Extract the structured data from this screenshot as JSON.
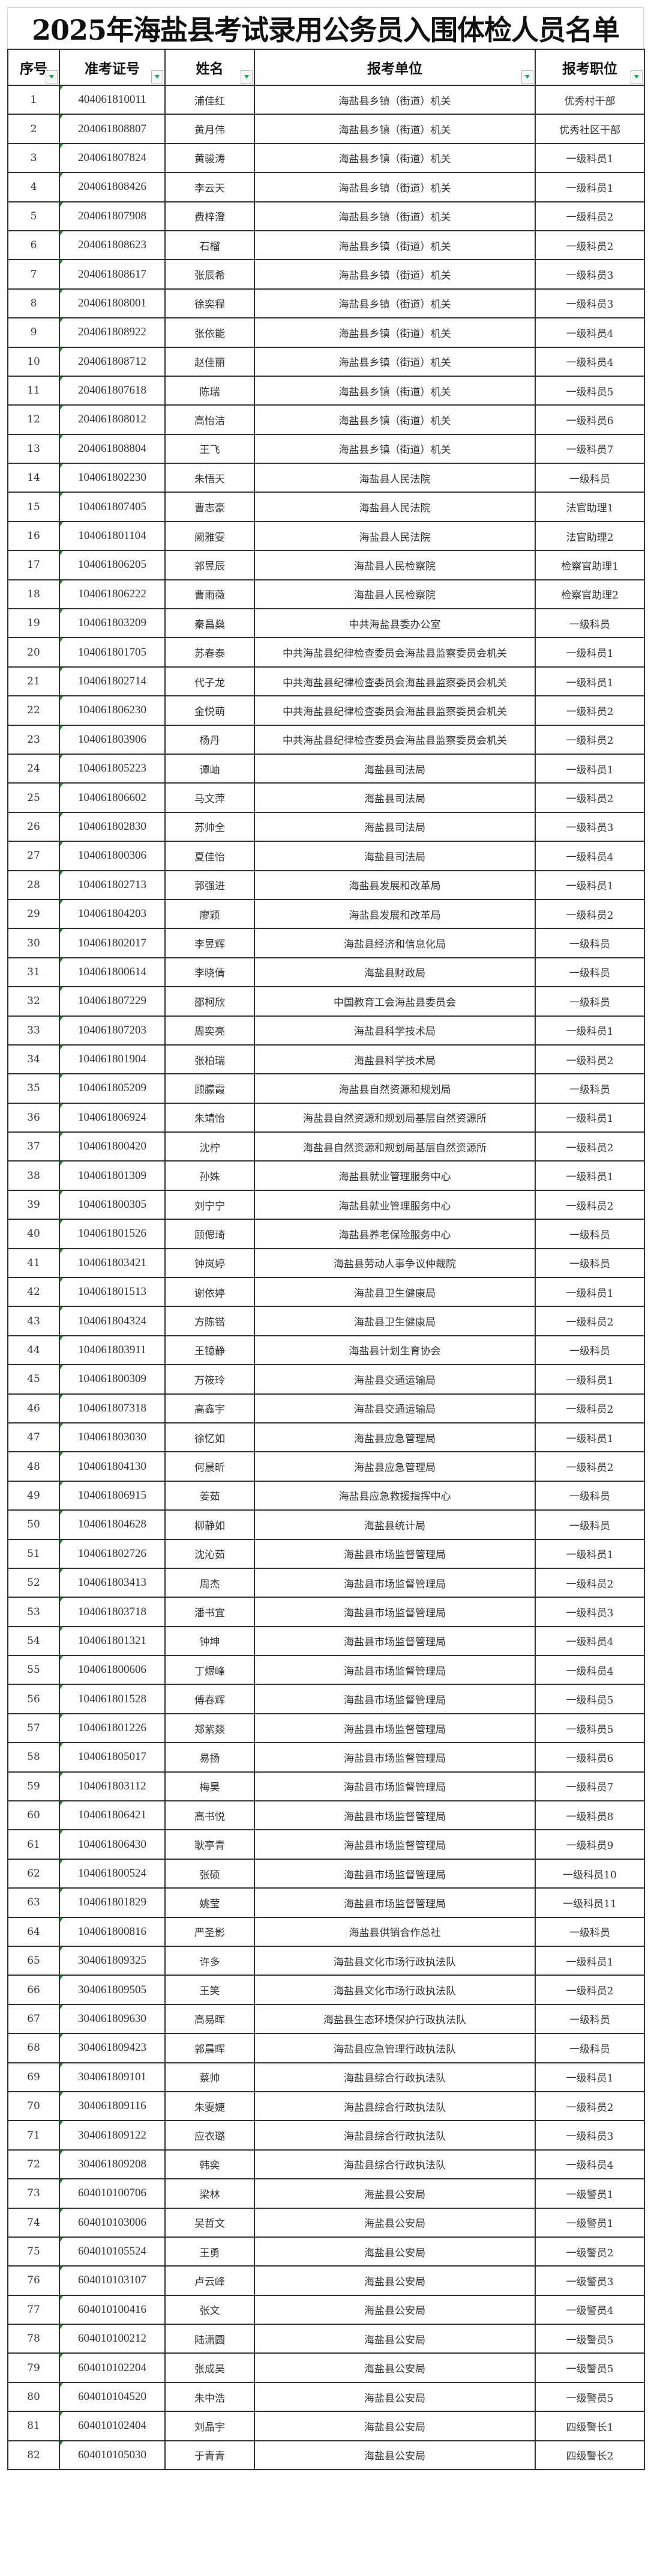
{
  "title": "2025年海盐县考试录用公务员入围体检人员名单",
  "columns": [
    "序号",
    "准考证号",
    "姓名",
    "报考单位",
    "报考职位"
  ],
  "colors": {
    "comment_marker": "#1e8a1e",
    "filter_arrow": "#1aa35a"
  },
  "rows": [
    [
      "1",
      "404061810011",
      "浦佳红",
      "海盐县乡镇（街道）机关",
      "优秀村干部"
    ],
    [
      "2",
      "204061808807",
      "黄月伟",
      "海盐县乡镇（街道）机关",
      "优秀社区干部"
    ],
    [
      "3",
      "204061807824",
      "黄骏涛",
      "海盐县乡镇（街道）机关",
      "一级科员1"
    ],
    [
      "4",
      "204061808426",
      "李云天",
      "海盐县乡镇（街道）机关",
      "一级科员1"
    ],
    [
      "5",
      "204061807908",
      "费梓澄",
      "海盐县乡镇（街道）机关",
      "一级科员2"
    ],
    [
      "6",
      "204061808623",
      "石榴",
      "海盐县乡镇（街道）机关",
      "一级科员2"
    ],
    [
      "7",
      "204061808617",
      "张辰希",
      "海盐县乡镇（街道）机关",
      "一级科员3"
    ],
    [
      "8",
      "204061808001",
      "徐奕程",
      "海盐县乡镇（街道）机关",
      "一级科员3"
    ],
    [
      "9",
      "204061808922",
      "张依能",
      "海盐县乡镇（街道）机关",
      "一级科员4"
    ],
    [
      "10",
      "204061808712",
      "赵佳丽",
      "海盐县乡镇（街道）机关",
      "一级科员4"
    ],
    [
      "11",
      "204061807618",
      "陈瑞",
      "海盐县乡镇（街道）机关",
      "一级科员5"
    ],
    [
      "12",
      "204061808012",
      "高怡洁",
      "海盐县乡镇（街道）机关",
      "一级科员6"
    ],
    [
      "13",
      "204061808804",
      "王飞",
      "海盐县乡镇（街道）机关",
      "一级科员7"
    ],
    [
      "14",
      "104061802230",
      "朱悟天",
      "海盐县人民法院",
      "一级科员"
    ],
    [
      "15",
      "104061807405",
      "曹志豪",
      "海盐县人民法院",
      "法官助理1"
    ],
    [
      "16",
      "104061801104",
      "阙雅雯",
      "海盐县人民法院",
      "法官助理2"
    ],
    [
      "17",
      "104061806205",
      "郭昱辰",
      "海盐县人民检察院",
      "检察官助理1"
    ],
    [
      "18",
      "104061806222",
      "曹雨薇",
      "海盐县人民检察院",
      "检察官助理2"
    ],
    [
      "19",
      "104061803209",
      "秦昌燊",
      "中共海盐县委办公室",
      "一级科员"
    ],
    [
      "20",
      "104061801705",
      "苏春泰",
      "中共海盐县纪律检查委员会海盐县监察委员会机关",
      "一级科员1"
    ],
    [
      "21",
      "104061802714",
      "代子龙",
      "中共海盐县纪律检查委员会海盐县监察委员会机关",
      "一级科员1"
    ],
    [
      "22",
      "104061806230",
      "金悦萌",
      "中共海盐县纪律检查委员会海盐县监察委员会机关",
      "一级科员2"
    ],
    [
      "23",
      "104061803906",
      "杨丹",
      "中共海盐县纪律检查委员会海盐县监察委员会机关",
      "一级科员2"
    ],
    [
      "24",
      "104061805223",
      "谭岫",
      "海盐县司法局",
      "一级科员1"
    ],
    [
      "25",
      "104061806602",
      "马文萍",
      "海盐县司法局",
      "一级科员2"
    ],
    [
      "26",
      "104061802830",
      "苏帅全",
      "海盐县司法局",
      "一级科员3"
    ],
    [
      "27",
      "104061800306",
      "夏佳怡",
      "海盐县司法局",
      "一级科员4"
    ],
    [
      "28",
      "104061802713",
      "郭强进",
      "海盐县发展和改革局",
      "一级科员1"
    ],
    [
      "29",
      "104061804203",
      "廖颖",
      "海盐县发展和改革局",
      "一级科员2"
    ],
    [
      "30",
      "104061802017",
      "李昱辉",
      "海盐县经济和信息化局",
      "一级科员"
    ],
    [
      "31",
      "104061800614",
      "李晓倩",
      "海盐县财政局",
      "一级科员"
    ],
    [
      "32",
      "104061807229",
      "邵柯欣",
      "中国教育工会海盐县委员会",
      "一级科员"
    ],
    [
      "33",
      "104061807203",
      "周奕亮",
      "海盐县科学技术局",
      "一级科员1"
    ],
    [
      "34",
      "104061801904",
      "张柏瑞",
      "海盐县科学技术局",
      "一级科员2"
    ],
    [
      "35",
      "104061805209",
      "顾朦霞",
      "海盐县自然资源和规划局",
      "一级科员"
    ],
    [
      "36",
      "104061806924",
      "朱靖怡",
      "海盐县自然资源和规划局基层自然资源所",
      "一级科员1"
    ],
    [
      "37",
      "104061800420",
      "沈柠",
      "海盐县自然资源和规划局基层自然资源所",
      "一级科员2"
    ],
    [
      "38",
      "104061801309",
      "孙姝",
      "海盐县就业管理服务中心",
      "一级科员1"
    ],
    [
      "39",
      "104061800305",
      "刘宁宁",
      "海盐县就业管理服务中心",
      "一级科员2"
    ],
    [
      "40",
      "104061801526",
      "顾偲琦",
      "海盐县养老保险服务中心",
      "一级科员"
    ],
    [
      "41",
      "104061803421",
      "钟岚婷",
      "海盐县劳动人事争议仲裁院",
      "一级科员"
    ],
    [
      "42",
      "104061801513",
      "谢依婷",
      "海盐县卫生健康局",
      "一级科员1"
    ],
    [
      "43",
      "104061804324",
      "方陈锴",
      "海盐县卫生健康局",
      "一级科员2"
    ],
    [
      "44",
      "104061803911",
      "王镱静",
      "海盐县计划生育协会",
      "一级科员"
    ],
    [
      "45",
      "104061800309",
      "万筱玲",
      "海盐县交通运输局",
      "一级科员1"
    ],
    [
      "46",
      "104061807318",
      "高鑫宇",
      "海盐县交通运输局",
      "一级科员2"
    ],
    [
      "47",
      "104061803030",
      "徐忆如",
      "海盐县应急管理局",
      "一级科员1"
    ],
    [
      "48",
      "104061804130",
      "何晨昕",
      "海盐县应急管理局",
      "一级科员2"
    ],
    [
      "49",
      "104061806915",
      "姜茹",
      "海盐县应急救援指挥中心",
      "一级科员"
    ],
    [
      "50",
      "104061804628",
      "柳静如",
      "海盐县统计局",
      "一级科员"
    ],
    [
      "51",
      "104061802726",
      "沈沁茹",
      "海盐县市场监督管理局",
      "一级科员1"
    ],
    [
      "52",
      "104061803413",
      "周杰",
      "海盐县市场监督管理局",
      "一级科员2"
    ],
    [
      "53",
      "104061803718",
      "潘书宜",
      "海盐县市场监督管理局",
      "一级科员3"
    ],
    [
      "54",
      "104061801321",
      "钟坤",
      "海盐县市场监督管理局",
      "一级科员4"
    ],
    [
      "55",
      "104061800606",
      "丁煜峰",
      "海盐县市场监督管理局",
      "一级科员4"
    ],
    [
      "56",
      "104061801528",
      "傅春辉",
      "海盐县市场监督管理局",
      "一级科员5"
    ],
    [
      "57",
      "104061801226",
      "郑紫燚",
      "海盐县市场监督管理局",
      "一级科员5"
    ],
    [
      "58",
      "104061805017",
      "易扬",
      "海盐县市场监督管理局",
      "一级科员6"
    ],
    [
      "59",
      "104061803112",
      "梅昊",
      "海盐县市场监督管理局",
      "一级科员7"
    ],
    [
      "60",
      "104061806421",
      "高书悦",
      "海盐县市场监督管理局",
      "一级科员8"
    ],
    [
      "61",
      "104061806430",
      "耿亭青",
      "海盐县市场监督管理局",
      "一级科员9"
    ],
    [
      "62",
      "104061800524",
      "张硕",
      "海盐县市场监督管理局",
      "一级科员10"
    ],
    [
      "63",
      "104061801829",
      "姚莹",
      "海盐县市场监督管理局",
      "一级科员11"
    ],
    [
      "64",
      "104061800816",
      "严圣影",
      "海盐县供销合作总社",
      "一级科员"
    ],
    [
      "65",
      "304061809325",
      "许多",
      "海盐县文化市场行政执法队",
      "一级科员1"
    ],
    [
      "66",
      "304061809505",
      "王笑",
      "海盐县文化市场行政执法队",
      "一级科员2"
    ],
    [
      "67",
      "304061809630",
      "高易晖",
      "海盐县生态环境保护行政执法队",
      "一级科员"
    ],
    [
      "68",
      "304061809423",
      "郭晨晖",
      "海盐县应急管理行政执法队",
      "一级科员"
    ],
    [
      "69",
      "304061809101",
      "蔡帅",
      "海盐县综合行政执法队",
      "一级科员1"
    ],
    [
      "70",
      "304061809116",
      "朱雯婕",
      "海盐县综合行政执法队",
      "一级科员2"
    ],
    [
      "71",
      "304061809122",
      "应衣璐",
      "海盐县综合行政执法队",
      "一级科员3"
    ],
    [
      "72",
      "304061809208",
      "韩奕",
      "海盐县综合行政执法队",
      "一级科员4"
    ],
    [
      "73",
      "604010100706",
      "梁林",
      "海盐县公安局",
      "一级警员1"
    ],
    [
      "74",
      "604010103006",
      "吴哲文",
      "海盐县公安局",
      "一级警员1"
    ],
    [
      "75",
      "604010105524",
      "王勇",
      "海盐县公安局",
      "一级警员2"
    ],
    [
      "76",
      "604010103107",
      "卢云峰",
      "海盐县公安局",
      "一级警员3"
    ],
    [
      "77",
      "604010100416",
      "张文",
      "海盐县公安局",
      "一级警员4"
    ],
    [
      "78",
      "604010100212",
      "陆潇圆",
      "海盐县公安局",
      "一级警员5"
    ],
    [
      "79",
      "604010102204",
      "张成昊",
      "海盐县公安局",
      "一级警员5"
    ],
    [
      "80",
      "604010104520",
      "朱中浩",
      "海盐县公安局",
      "一级警员5"
    ],
    [
      "81",
      "604010102404",
      "刘晶宇",
      "海盐县公安局",
      "四级警长1"
    ],
    [
      "82",
      "604010105030",
      "于青青",
      "海盐县公安局",
      "四级警长2"
    ]
  ]
}
